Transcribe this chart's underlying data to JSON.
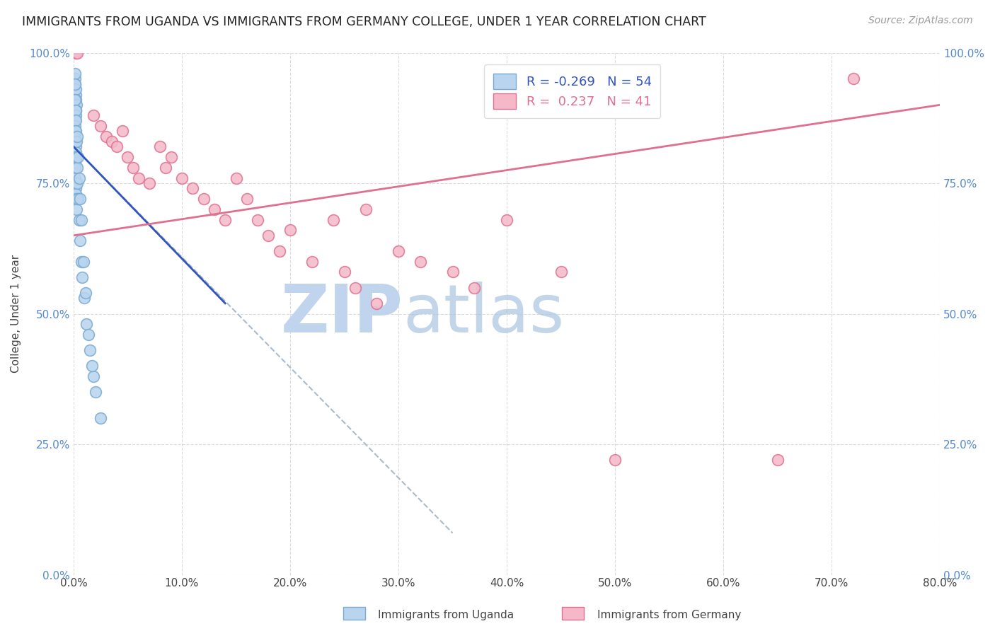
{
  "title": "IMMIGRANTS FROM UGANDA VS IMMIGRANTS FROM GERMANY COLLEGE, UNDER 1 YEAR CORRELATION CHART",
  "source": "Source: ZipAtlas.com",
  "ylabel": "College, Under 1 year",
  "x_tick_labels": [
    "0.0%",
    "10.0%",
    "20.0%",
    "30.0%",
    "40.0%",
    "50.0%",
    "60.0%",
    "70.0%",
    "80.0%"
  ],
  "x_tick_values": [
    0.0,
    10.0,
    20.0,
    30.0,
    40.0,
    50.0,
    60.0,
    70.0,
    80.0
  ],
  "y_tick_labels": [
    "0.0%",
    "25.0%",
    "50.0%",
    "75.0%",
    "100.0%"
  ],
  "y_tick_values": [
    0.0,
    25.0,
    50.0,
    75.0,
    100.0
  ],
  "xlim": [
    0.0,
    80.0
  ],
  "ylim": [
    0.0,
    100.0
  ],
  "legend_blue_label": "Immigrants from Uganda",
  "legend_pink_label": "Immigrants from Germany",
  "R_blue": -0.269,
  "N_blue": 54,
  "R_pink": 0.237,
  "N_pink": 41,
  "blue_color": "#b8d4ee",
  "blue_edge_color": "#7aaad0",
  "pink_color": "#f4b8c8",
  "pink_edge_color": "#e07090",
  "blue_line_color": "#3355bb",
  "pink_line_color": "#e07090",
  "dashed_line_color": "#aabbcc",
  "watermark_zip_color": "#c8d8f0",
  "watermark_atlas_color": "#a0b8d8",
  "uganda_x": [
    0.15,
    0.2,
    0.22,
    0.25,
    0.12,
    0.18,
    0.2,
    0.22,
    0.1,
    0.12,
    0.14,
    0.16,
    0.15,
    0.17,
    0.19,
    0.13,
    0.11,
    0.14,
    0.16,
    0.18,
    0.2,
    0.23,
    0.25,
    0.28,
    0.1,
    0.12,
    0.15,
    0.17,
    0.2,
    0.22,
    0.25,
    0.28,
    0.3,
    0.35,
    0.4,
    0.5,
    0.6,
    0.7,
    0.8,
    1.0,
    1.2,
    1.5,
    1.8,
    2.0,
    0.3,
    0.4,
    0.5,
    0.6,
    0.7,
    0.9,
    1.1,
    1.4,
    1.7,
    2.5
  ],
  "uganda_y": [
    95,
    92,
    91,
    90,
    94,
    93,
    89,
    88,
    87,
    86,
    85,
    84,
    83,
    82,
    81,
    80,
    79,
    78,
    76,
    75,
    74,
    73,
    72,
    70,
    96,
    94,
    91,
    89,
    87,
    85,
    83,
    80,
    78,
    75,
    72,
    68,
    64,
    60,
    57,
    53,
    48,
    43,
    38,
    35,
    84,
    80,
    76,
    72,
    68,
    60,
    54,
    46,
    40,
    30
  ],
  "germany_x": [
    0.2,
    0.3,
    1.8,
    2.5,
    3.0,
    3.5,
    4.0,
    4.5,
    5.0,
    5.5,
    6.0,
    7.0,
    8.0,
    8.5,
    9.0,
    10.0,
    11.0,
    12.0,
    13.0,
    14.0,
    15.0,
    16.0,
    17.0,
    18.0,
    19.0,
    20.0,
    22.0,
    24.0,
    25.0,
    26.0,
    27.0,
    28.0,
    30.0,
    32.0,
    35.0,
    37.0,
    40.0,
    45.0,
    50.0,
    65.0,
    72.0
  ],
  "germany_y": [
    100,
    100,
    88,
    86,
    84,
    83,
    82,
    85,
    80,
    78,
    76,
    75,
    82,
    78,
    80,
    76,
    74,
    72,
    70,
    68,
    76,
    72,
    68,
    65,
    62,
    66,
    60,
    68,
    58,
    55,
    70,
    52,
    62,
    60,
    58,
    55,
    68,
    58,
    22,
    22,
    95
  ],
  "blue_line_x0": 0.0,
  "blue_line_y0": 82.0,
  "blue_line_x1": 14.0,
  "blue_line_y1": 52.0,
  "pink_line_x0": 0.0,
  "pink_line_y0": 65.0,
  "pink_line_x1": 80.0,
  "pink_line_y1": 90.0,
  "dash_line_x0": 0.0,
  "dash_line_y0": 82.0,
  "dash_line_x1": 35.0,
  "dash_line_y1": 8.0
}
